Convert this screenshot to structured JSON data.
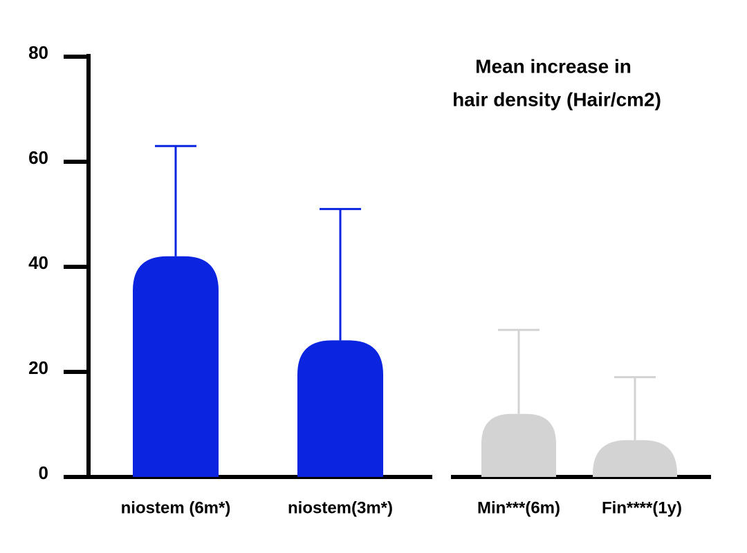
{
  "chart_data": {
    "type": "bar",
    "title": [
      "Mean increase in",
      "hair density (Hair/cm2)"
    ],
    "categories": [
      "niostem (6m*)",
      "niostem(3m*)",
      "Min***(6m)",
      "Fin****(1y)"
    ],
    "values": [
      42,
      26,
      12,
      7
    ],
    "errors": [
      21,
      25,
      16,
      12
    ],
    "colors": [
      "#0a24e0",
      "#0a24e0",
      "#d3d3d3",
      "#d3d3d3"
    ],
    "ylim": [
      0,
      80
    ],
    "yticks": [
      0,
      20,
      40,
      60,
      80
    ]
  }
}
